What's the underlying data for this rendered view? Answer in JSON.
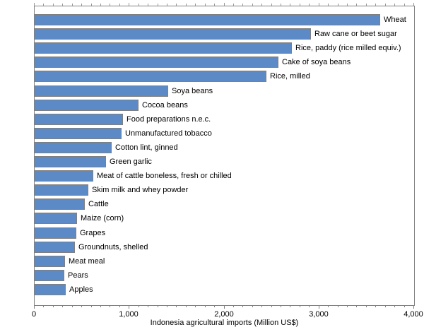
{
  "chart_data": {
    "type": "bar",
    "orientation": "horizontal",
    "title": "",
    "xlabel": "Indonesia agricultural imports (Million US$)",
    "ylabel": "",
    "xlim": [
      0,
      4000
    ],
    "grid": false,
    "legend": "none",
    "categories": [
      "Wheat",
      "Raw cane or beet sugar",
      "Rice, paddy (rice milled equiv.)",
      "Cake of soya beans",
      "Rice, milled",
      "Soya beans",
      "Cocoa beans",
      "Food preparations n.e.c.",
      "Unmanufactured tobacco",
      "Cotton lint, ginned",
      "Green garlic",
      "Meat of cattle boneless, fresh or chilled",
      "Skim milk and whey powder",
      "Cattle",
      "Maize (corn)",
      "Grapes",
      "Groundnuts, shelled",
      "Meat meal",
      "Pears",
      "Apples"
    ],
    "values": [
      3640,
      2915,
      2715,
      2570,
      2445,
      1405,
      1095,
      930,
      915,
      810,
      750,
      620,
      565,
      530,
      445,
      440,
      425,
      320,
      315,
      325
    ],
    "xticks": {
      "values": [
        0,
        1000,
        2000,
        3000,
        4000
      ],
      "labels": [
        "0",
        "1,000",
        "2,000",
        "3,000",
        "4,000"
      ]
    },
    "minor_tick_step": 100,
    "colors": {
      "bar_fill": "#5b8ac6",
      "bar_border": "#808080",
      "box_border": "#808080",
      "tick_color": "#808080",
      "text_color": "#000000"
    }
  }
}
